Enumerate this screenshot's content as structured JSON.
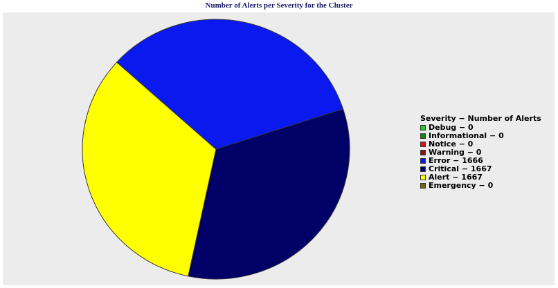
{
  "chart_data": {
    "type": "pie",
    "title": "Number of Alerts per Severity for the Cluster",
    "legend_title": "Severity − Number of Alerts",
    "legend_position": "right",
    "series": [
      {
        "name": "Debug",
        "value": 0,
        "color": "#22cc22",
        "label": "Debug − 0"
      },
      {
        "name": "Informational",
        "value": 0,
        "color": "#118811",
        "label": "Informational − 0"
      },
      {
        "name": "Notice",
        "value": 0,
        "color": "#dd1111",
        "label": "Notice − 0"
      },
      {
        "name": "Warning",
        "value": 0,
        "color": "#881111",
        "label": "Warning − 0"
      },
      {
        "name": "Error",
        "value": 1666,
        "color": "#0a1aee",
        "label": "Error − 1666"
      },
      {
        "name": "Critical",
        "value": 1667,
        "color": "#000066",
        "label": "Critical − 1667"
      },
      {
        "name": "Alert",
        "value": 1667,
        "color": "#ffff00",
        "label": "Alert − 1667"
      },
      {
        "name": "Emergency",
        "value": 0,
        "color": "#776611",
        "label": "Emergency − 0"
      }
    ]
  }
}
